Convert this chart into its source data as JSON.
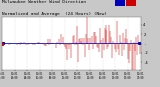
{
  "title_line1": "Milwaukee Weather Wind Direction",
  "title_line2": "Normalized and Average  (24 Hours) (New)",
  "plot_bg_color": "#ffffff",
  "outer_bg": "#c8c8c8",
  "bar_color": "#cc0000",
  "avg_line_color": "#0000bb",
  "legend_blue": "#0000bb",
  "legend_red": "#cc0000",
  "ylim": [
    -5.5,
    5.5
  ],
  "yticks": [
    4,
    2,
    0,
    -2,
    -4
  ],
  "ytick_labels": [
    "4",
    "2",
    ".",
    "-2",
    "-4"
  ],
  "n_points": 144,
  "avg_value": 0.15,
  "title_fontsize": 3.2,
  "tick_fontsize": 2.8,
  "n_xticks": 12,
  "dot_color": "#cc0000",
  "dot_color2": "#0000bb"
}
